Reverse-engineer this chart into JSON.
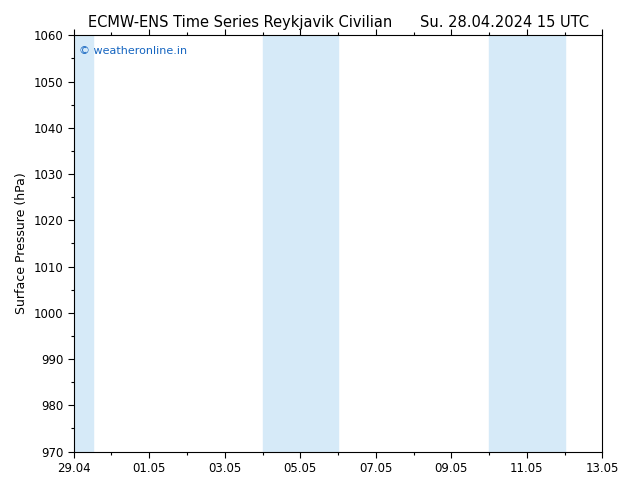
{
  "title_left": "ECMW-ENS Time Series Reykjavik Civilian",
  "title_right": "Su. 28.04.2024 15 UTC",
  "ylabel": "Surface Pressure (hPa)",
  "ylim": [
    970,
    1060
  ],
  "yticks": [
    970,
    980,
    990,
    1000,
    1010,
    1020,
    1030,
    1040,
    1050,
    1060
  ],
  "xtick_labels": [
    "29.04",
    "01.05",
    "03.05",
    "05.05",
    "07.05",
    "09.05",
    "11.05",
    "13.05"
  ],
  "shaded_bands": [
    {
      "xmin": 0.0,
      "xmax": 0.5
    },
    {
      "xmin": 5.0,
      "xmax": 7.0
    },
    {
      "xmin": 11.0,
      "xmax": 13.0
    }
  ],
  "shade_color": "#d6eaf8",
  "plot_bg_color": "#ffffff",
  "fig_bg_color": "#ffffff",
  "watermark_text": "© weatheronline.in",
  "watermark_color": "#1565c0",
  "title_fontsize": 10.5,
  "axis_label_fontsize": 9,
  "tick_fontsize": 8.5,
  "xlim_start": 0,
  "xlim_end": 14,
  "xtick_positions": [
    0,
    2,
    4,
    6,
    8,
    10,
    12,
    14
  ]
}
